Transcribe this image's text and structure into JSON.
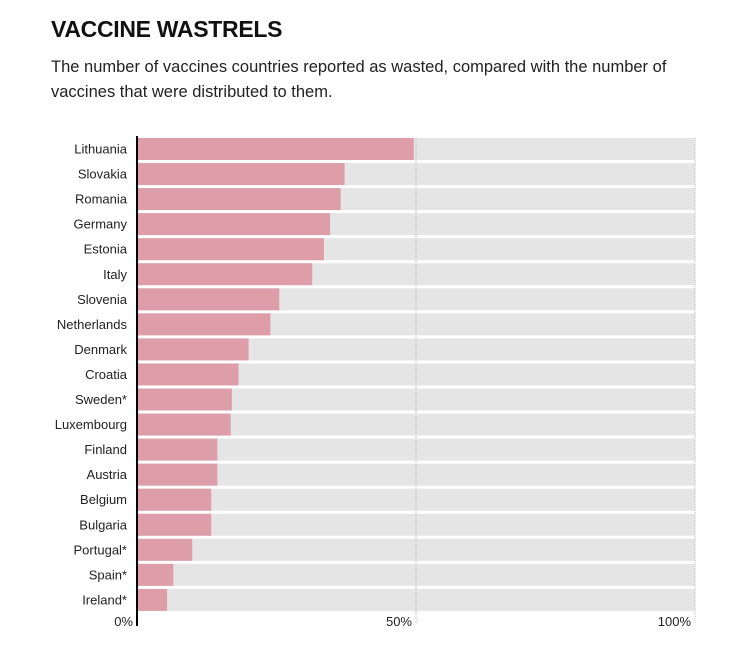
{
  "title": "VACCINE WASTRELS",
  "subtitle": "The number of vaccines countries reported as wasted, compared with the number of vaccines that were distributed to them.",
  "colors": {
    "bar": "#dd9ea9",
    "track": "#e5e5e5",
    "axis": "#000000",
    "grid": "#bbbbbb"
  },
  "chart_data": {
    "type": "bar",
    "orientation": "horizontal",
    "categories": [
      "Lithuania",
      "Slovakia",
      "Romania",
      "Germany",
      "Estonia",
      "Italy",
      "Slovenia",
      "Netherlands",
      "Denmark",
      "Croatia",
      "Sweden*",
      "Luxembourg",
      "Finland",
      "Austria",
      "Belgium",
      "Bulgaria",
      "Portugal*",
      "Spain*",
      "Ireland*"
    ],
    "values": [
      49.6,
      37.2,
      36.5,
      34.6,
      33.5,
      31.4,
      25.5,
      23.9,
      20.0,
      18.2,
      17.0,
      16.8,
      14.4,
      14.4,
      13.3,
      13.3,
      9.9,
      6.5,
      5.4
    ],
    "xlim": [
      0,
      100
    ],
    "ticks": [
      "0%",
      "50%",
      "100%"
    ],
    "tick_values": [
      0,
      50,
      100
    ],
    "grid": true
  }
}
